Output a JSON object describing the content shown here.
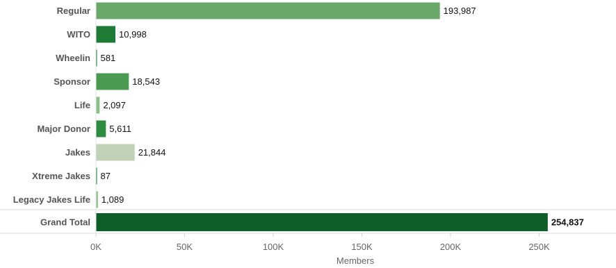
{
  "chart_data": {
    "type": "bar",
    "orientation": "horizontal",
    "categories": [
      "Regular",
      "WITO",
      "Wheelin",
      "Sponsor",
      "Life",
      "Major Donor",
      "Jakes",
      "Xtreme Jakes",
      "Legacy Jakes Life",
      "Grand Total"
    ],
    "values": [
      193987,
      10998,
      581,
      18543,
      2097,
      5611,
      21844,
      87,
      1089,
      254837
    ],
    "value_labels": [
      "193,987",
      "10,998",
      "581",
      "18,543",
      "2,097",
      "5,611",
      "21,844",
      "87",
      "1,089",
      "254,837"
    ],
    "bar_colors": [
      "#6aa86a",
      "#1f7a35",
      "#1f7a35",
      "#4a9a52",
      "#8cc08a",
      "#2f8b40",
      "#c0d2b8",
      "#1f7a35",
      "#8cc08a",
      "#0e5e2a"
    ],
    "xlabel": "Members",
    "ylabel": "",
    "xlim": [
      0,
      290000
    ],
    "x_ticks": [
      0,
      50000,
      100000,
      150000,
      200000,
      250000
    ],
    "x_tick_labels": [
      "0K",
      "50K",
      "100K",
      "150K",
      "200K",
      "250K"
    ],
    "grid": false,
    "legend": "none"
  }
}
